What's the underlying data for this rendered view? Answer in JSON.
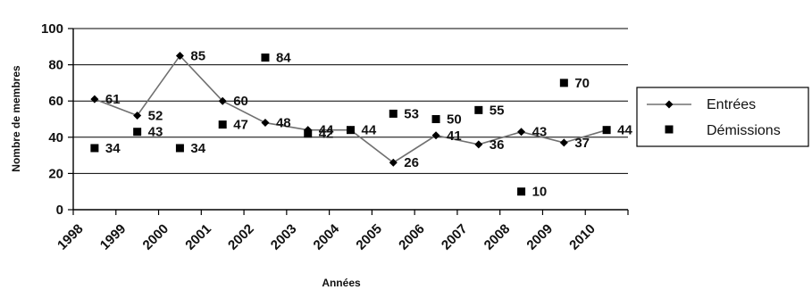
{
  "chart_data": {
    "type": "line",
    "title": "",
    "xlabel": "Années",
    "ylabel": "Nombre de membres",
    "ylim": [
      0,
      100
    ],
    "yticks": [
      0,
      20,
      40,
      60,
      80,
      100
    ],
    "categories": [
      "1998",
      "1999",
      "2000",
      "2001",
      "2002",
      "2003",
      "2004",
      "2005",
      "2006",
      "2007",
      "2008",
      "2009",
      "2010"
    ],
    "grid": true,
    "legend_position": "right",
    "series": [
      {
        "name": "Entrées",
        "style": "line-with-diamond-markers",
        "x": [
          "1998",
          "1999",
          "2000",
          "2001",
          "2002",
          "2003",
          "2004",
          "2005",
          "2006",
          "2007",
          "2008",
          "2009",
          "2010"
        ],
        "values": [
          61,
          52,
          85,
          60,
          48,
          44,
          44,
          26,
          41,
          36,
          43,
          37,
          44
        ],
        "labels": [
          "61",
          "52",
          "85",
          "60",
          "48",
          "44",
          "44",
          "26",
          "41",
          "36",
          "43",
          "37",
          "44"
        ]
      },
      {
        "name": "Démissions",
        "style": "square-markers-only",
        "x": [
          "1998",
          "1999",
          "2000",
          "2001",
          "2002",
          "2003",
          "2004",
          "2005",
          "2006",
          "2007",
          "2008",
          "2009",
          "2010"
        ],
        "values": [
          34,
          43,
          34,
          47,
          84,
          42,
          44,
          53,
          50,
          55,
          10,
          70,
          44
        ],
        "labels": [
          "34",
          "43",
          "34",
          "47",
          "84",
          "42",
          "",
          "53",
          "50",
          "55",
          "10",
          "70",
          ""
        ]
      }
    ],
    "colors": {
      "line": "#707070",
      "marker": "#000000",
      "grid": "#000000"
    }
  }
}
